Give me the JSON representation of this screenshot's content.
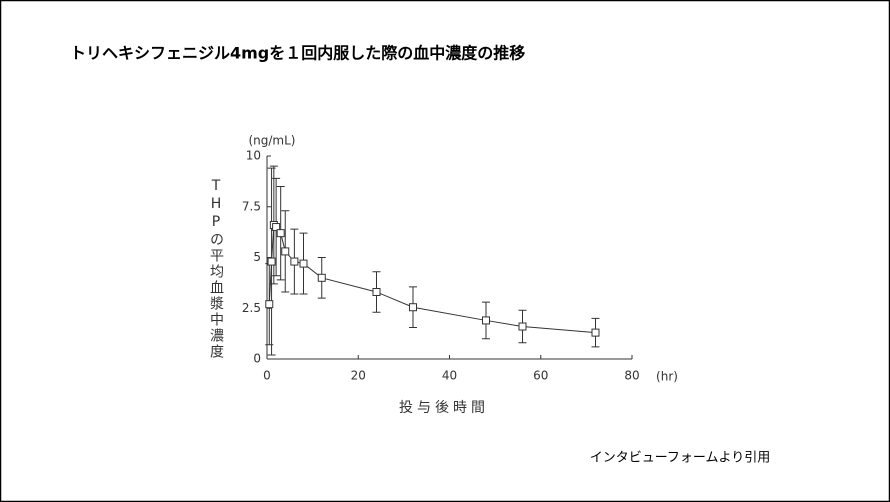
{
  "chart_data": {
    "type": "line",
    "title": "トリヘキシフェニジル4mgを１回内服した際の血中濃度の推移",
    "y_label": "THPの平均血漿中濃度",
    "y_unit": "(ng/mL)",
    "x_label": "投与後時間",
    "x_unit": "(hr)",
    "source": "インタビューフォームより引用",
    "x": [
      0.5,
      1,
      1.5,
      2,
      3,
      4,
      6,
      8,
      12,
      24,
      32,
      48,
      56,
      72
    ],
    "series": [
      {
        "color": "#333333",
        "values": [
          2.7,
          4.8,
          6.6,
          6.5,
          6.2,
          5.3,
          4.8,
          4.7,
          4.0,
          3.3,
          2.55,
          1.9,
          1.6,
          1.3
        ],
        "errors": [
          2.0,
          4.6,
          2.9,
          2.4,
          2.3,
          2.0,
          1.6,
          1.5,
          1.0,
          1.0,
          1.0,
          0.9,
          0.8,
          0.7
        ]
      }
    ],
    "xlim": [
      0,
      80
    ],
    "xticks": [
      0,
      20,
      40,
      60,
      80
    ],
    "ylim": [
      0,
      10
    ],
    "yticks": [
      0,
      2.5,
      5,
      7.5,
      10
    ]
  }
}
